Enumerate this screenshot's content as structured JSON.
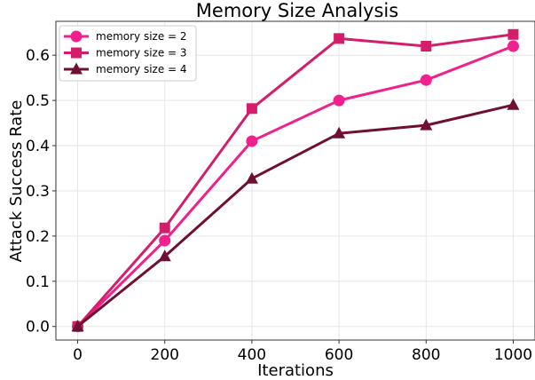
{
  "chart_data": {
    "type": "line",
    "title": "Memory Size Analysis",
    "xlabel": "Iterations",
    "ylabel": "Attack Success Rate",
    "x": [
      0,
      200,
      400,
      600,
      800,
      1000
    ],
    "xlim": [
      -50,
      1050
    ],
    "ylim": [
      -0.03,
      0.675
    ],
    "xticks": [
      0,
      200,
      400,
      600,
      800,
      1000
    ],
    "yticks": [
      0.0,
      0.1,
      0.2,
      0.3,
      0.4,
      0.5,
      0.6
    ],
    "ytick_labels": [
      "0.0",
      "0.1",
      "0.2",
      "0.3",
      "0.4",
      "0.5",
      "0.6"
    ],
    "grid": true,
    "legend_position": "top-left",
    "series": [
      {
        "name": "memory size = 2",
        "marker": "circle",
        "color": "#f0208c",
        "values": [
          0.0,
          0.19,
          0.41,
          0.5,
          0.545,
          0.62
        ]
      },
      {
        "name": "memory size = 3",
        "marker": "square",
        "color": "#d41e6c",
        "values": [
          0.0,
          0.218,
          0.482,
          0.637,
          0.62,
          0.646
        ]
      },
      {
        "name": "memory size = 4",
        "marker": "triangle",
        "color": "#6e0f33",
        "values": [
          0.0,
          0.155,
          0.327,
          0.427,
          0.445,
          0.49
        ]
      }
    ]
  }
}
